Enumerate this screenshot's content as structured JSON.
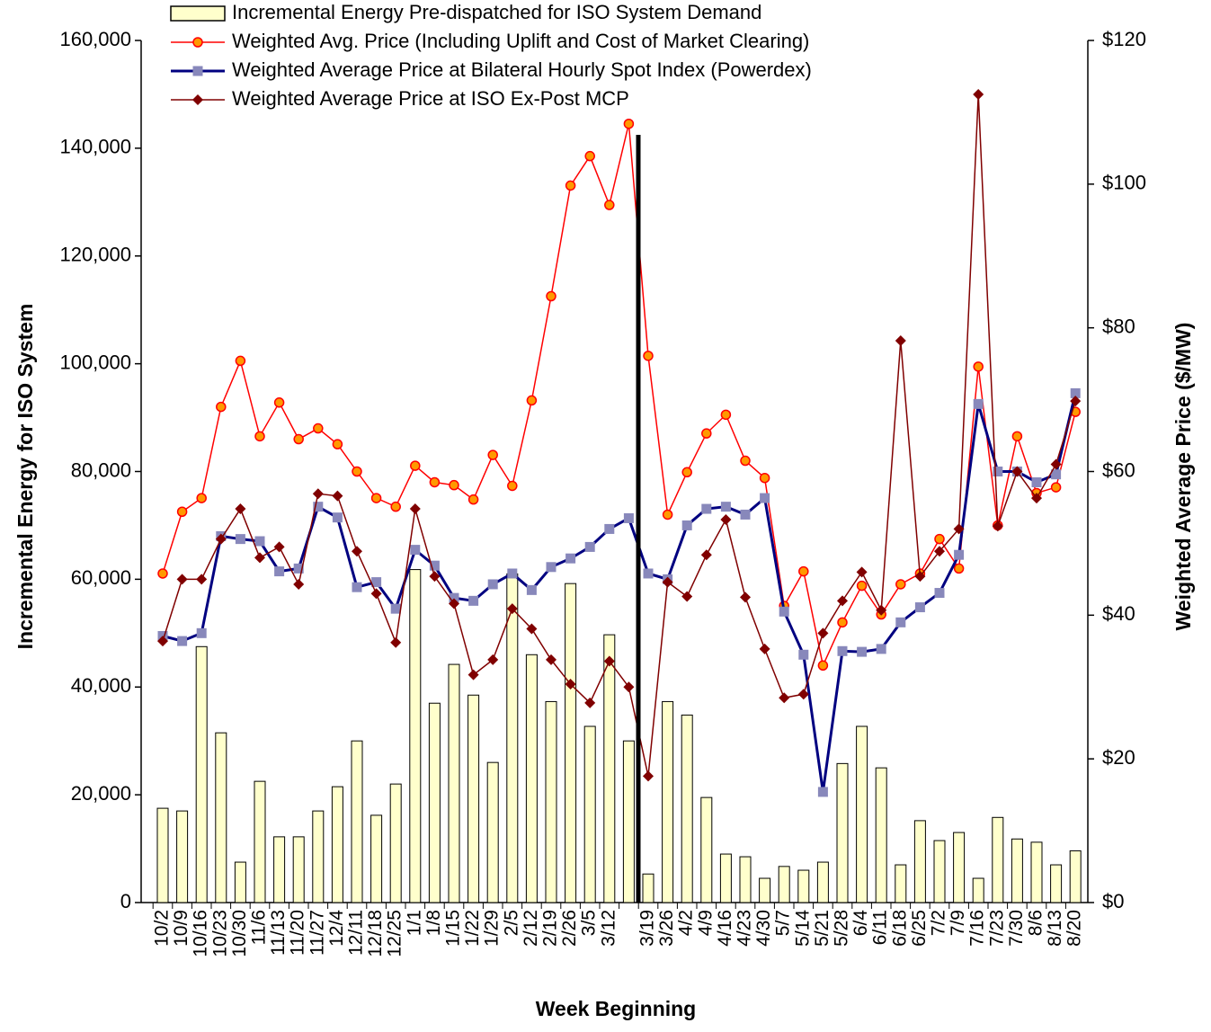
{
  "chart_data": {
    "type": "combo",
    "x_label": "Week Beginning",
    "y_label": "Incremental Energy for ISO System",
    "y2_label": "Weighted Average Price ($/MW)",
    "categories": [
      "10/2",
      "10/9",
      "10/16",
      "10/23",
      "10/30",
      "11/6",
      "11/13",
      "11/20",
      "11/27",
      "12/4",
      "12/11",
      "12/18",
      "12/25",
      "1/1",
      "1/8",
      "1/15",
      "1/22",
      "1/29",
      "2/5",
      "2/12",
      "2/19",
      "2/26",
      "3/5",
      "3/12",
      null,
      "3/19",
      "3/26",
      "4/2",
      "4/9",
      "4/16",
      "4/23",
      "4/30",
      "5/7",
      "5/14",
      "5/21",
      "5/28",
      "6/4",
      "6/11",
      "6/18",
      "6/25",
      "7/2",
      "7/9",
      "7/16",
      "7/23",
      "7/30",
      "8/6",
      "8/13",
      "8/20"
    ],
    "ylim": [
      0,
      160000
    ],
    "yticks": [
      {
        "value": 0,
        "label": "0"
      },
      {
        "value": 20000,
        "label": "20,000"
      },
      {
        "value": 40000,
        "label": "40,000"
      },
      {
        "value": 60000,
        "label": "60,000"
      },
      {
        "value": 80000,
        "label": "80,000"
      },
      {
        "value": 100000,
        "label": "100,000"
      },
      {
        "value": 120000,
        "label": "120,000"
      },
      {
        "value": 140000,
        "label": "140,000"
      },
      {
        "value": 160000,
        "label": "160,000"
      }
    ],
    "y2lim": [
      0,
      120
    ],
    "y2ticks": [
      {
        "value": 0,
        "label": "$0"
      },
      {
        "value": 20,
        "label": "$20"
      },
      {
        "value": 40,
        "label": "$40"
      },
      {
        "value": 60,
        "label": "$60"
      },
      {
        "value": 80,
        "label": "$80"
      },
      {
        "value": 100,
        "label": "$100"
      },
      {
        "value": 120,
        "label": "$120"
      }
    ],
    "series": [
      {
        "name": "Incremental Energy Pre-dispatched for ISO System Demand",
        "type": "bar",
        "color": "#ffffcc",
        "axis": "y",
        "values": [
          17500,
          17000,
          47500,
          31500,
          7500,
          22500,
          12200,
          12200,
          17000,
          21500,
          30000,
          16200,
          22000,
          61800,
          37000,
          44200,
          38500,
          26000,
          61000,
          46000,
          37300,
          59200,
          32700,
          49700,
          30000,
          5300,
          37300,
          34800,
          19500,
          9000,
          8500,
          4500,
          6700,
          6000,
          7500,
          25800,
          32700,
          25000,
          7000,
          15200,
          11500,
          13000,
          4500,
          15800,
          11800,
          11200,
          7000,
          9600
        ]
      },
      {
        "name": "Weighted Avg. Price (Including Uplift and Cost of Market Clearing)",
        "type": "line",
        "color": "#ff0000",
        "marker": "circle",
        "marker_color": "#ff9900",
        "axis": "y2",
        "values": [
          45.8,
          54.4,
          56.3,
          69,
          75.4,
          64.9,
          69.6,
          64.5,
          66,
          63.8,
          60,
          56.3,
          55.1,
          60.8,
          58.5,
          58.1,
          56.1,
          62.3,
          58,
          69.9,
          84.4,
          99.8,
          103.9,
          97.1,
          108.4,
          76.1,
          54,
          59.9,
          65.3,
          67.9,
          61.5,
          59.1,
          41.3,
          46.1,
          33,
          39,
          44.1,
          40.1,
          44.3,
          45.8,
          50.6,
          46.5,
          74.6,
          52.5,
          64.9,
          57,
          57.8,
          68.3
        ]
      },
      {
        "name": "Weighted Average Price at Bilateral Hourly Spot Index (Powerdex)",
        "type": "line",
        "color": "#000080",
        "marker": "square",
        "marker_color": "#8888bb",
        "axis": "y2",
        "values": [
          37.1,
          36.4,
          37.5,
          51,
          50.6,
          50.3,
          46.1,
          46.5,
          55.1,
          53.6,
          43.9,
          44.6,
          40.9,
          49.1,
          46.9,
          42.4,
          42,
          44.3,
          45.8,
          43.5,
          46.7,
          47.9,
          49.5,
          52,
          53.5,
          45.8,
          45,
          52.5,
          54.8,
          55.1,
          54,
          56.3,
          40.5,
          34.5,
          15.4,
          35,
          34.9,
          35.3,
          39,
          41.1,
          43.1,
          48.4,
          69.4,
          60,
          60,
          58.5,
          59.6,
          70.9
        ]
      },
      {
        "name": "Weighted Average Price at ISO Ex-Post MCP",
        "type": "line",
        "color": "#800000",
        "marker": "diamond",
        "marker_color": "#800000",
        "axis": "y2",
        "values": [
          36.4,
          45,
          45,
          50.6,
          54.8,
          48,
          49.5,
          44.3,
          56.9,
          56.6,
          48.9,
          43,
          36.2,
          54.8,
          45.4,
          41.6,
          31.7,
          33.8,
          40.9,
          38.1,
          33.8,
          30.4,
          27.8,
          33.6,
          30,
          17.6,
          44.6,
          42.6,
          48.4,
          53.3,
          42.5,
          35.3,
          28.5,
          29,
          37.5,
          42,
          46,
          40.7,
          78.2,
          45.4,
          48.9,
          52,
          112.5,
          52.4,
          60,
          56.3,
          61,
          69.8
        ]
      }
    ]
  }
}
